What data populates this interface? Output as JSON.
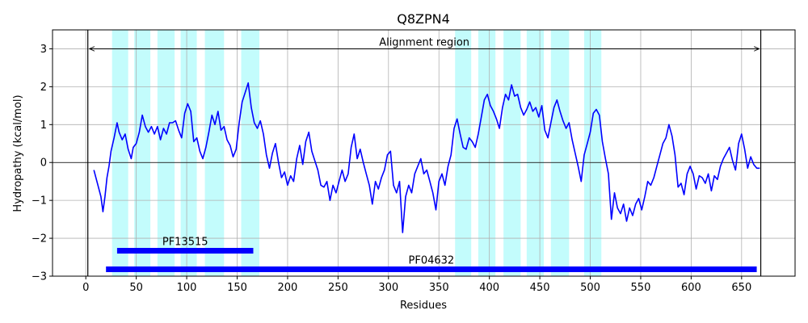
{
  "chart_data": {
    "type": "line",
    "title": "Q8ZPN4",
    "xlabel": "Residues",
    "ylabel": "Hydropathy (kcal/mol)",
    "xlim": [
      -33,
      703
    ],
    "ylim": [
      -3,
      3.5
    ],
    "xticks": [
      0,
      50,
      100,
      150,
      200,
      250,
      300,
      350,
      400,
      450,
      500,
      550,
      600,
      650
    ],
    "yticks": [
      -3,
      -2,
      -1,
      0,
      1,
      2,
      3
    ],
    "grid": true,
    "colors": {
      "line": "#0000ff",
      "band": "#c3fcfc",
      "domain": "#0000ff"
    },
    "highlight_regions": [
      [
        26,
        42
      ],
      [
        48,
        64
      ],
      [
        71,
        88
      ],
      [
        94,
        110
      ],
      [
        118,
        137
      ],
      [
        154,
        172
      ],
      [
        366,
        382
      ],
      [
        389,
        406
      ],
      [
        414,
        431
      ],
      [
        437,
        454
      ],
      [
        461,
        479
      ],
      [
        494,
        511
      ]
    ],
    "alignment_region": {
      "label": "Alignment region",
      "start": 2,
      "end": 669,
      "y": 3.0
    },
    "domains": [
      {
        "label": "PF13515",
        "start": 31,
        "end": 166,
        "y": -2.33
      },
      {
        "label": "PF04632",
        "start": 20,
        "end": 665,
        "y": -2.82
      }
    ],
    "series": [
      {
        "values": [
          [
            8,
            -0.2
          ],
          [
            12,
            -0.6
          ],
          [
            15,
            -0.9
          ],
          [
            17,
            -1.3
          ],
          [
            19,
            -0.9
          ],
          [
            21,
            -0.4
          ],
          [
            23,
            -0.1
          ],
          [
            25,
            0.3
          ],
          [
            28,
            0.65
          ],
          [
            31,
            1.05
          ],
          [
            33,
            0.8
          ],
          [
            36,
            0.6
          ],
          [
            39,
            0.75
          ],
          [
            42,
            0.35
          ],
          [
            45,
            0.1
          ],
          [
            47,
            0.4
          ],
          [
            50,
            0.5
          ],
          [
            53,
            0.8
          ],
          [
            56,
            1.25
          ],
          [
            59,
            0.95
          ],
          [
            62,
            0.8
          ],
          [
            65,
            0.95
          ],
          [
            68,
            0.75
          ],
          [
            71,
            0.95
          ],
          [
            74,
            0.6
          ],
          [
            77,
            0.9
          ],
          [
            80,
            0.75
          ],
          [
            83,
            1.05
          ],
          [
            86,
            1.05
          ],
          [
            89,
            1.1
          ],
          [
            92,
            0.85
          ],
          [
            95,
            0.65
          ],
          [
            98,
            1.3
          ],
          [
            101,
            1.55
          ],
          [
            104,
            1.35
          ],
          [
            107,
            0.55
          ],
          [
            110,
            0.65
          ],
          [
            113,
            0.3
          ],
          [
            116,
            0.1
          ],
          [
            119,
            0.4
          ],
          [
            122,
            0.8
          ],
          [
            125,
            1.25
          ],
          [
            128,
            1.0
          ],
          [
            131,
            1.35
          ],
          [
            134,
            0.85
          ],
          [
            137,
            0.95
          ],
          [
            140,
            0.6
          ],
          [
            143,
            0.45
          ],
          [
            146,
            0.15
          ],
          [
            149,
            0.35
          ],
          [
            152,
            1.05
          ],
          [
            155,
            1.6
          ],
          [
            158,
            1.85
          ],
          [
            161,
            2.1
          ],
          [
            164,
            1.45
          ],
          [
            167,
            1.05
          ],
          [
            170,
            0.9
          ],
          [
            173,
            1.1
          ],
          [
            176,
            0.75
          ],
          [
            179,
            0.2
          ],
          [
            182,
            -0.15
          ],
          [
            185,
            0.25
          ],
          [
            188,
            0.5
          ],
          [
            191,
            0.0
          ],
          [
            194,
            -0.4
          ],
          [
            197,
            -0.25
          ],
          [
            200,
            -0.6
          ],
          [
            203,
            -0.35
          ],
          [
            206,
            -0.5
          ],
          [
            209,
            0.1
          ],
          [
            212,
            0.45
          ],
          [
            215,
            -0.05
          ],
          [
            218,
            0.55
          ],
          [
            221,
            0.8
          ],
          [
            224,
            0.3
          ],
          [
            227,
            0.05
          ],
          [
            230,
            -0.2
          ],
          [
            233,
            -0.6
          ],
          [
            236,
            -0.65
          ],
          [
            239,
            -0.5
          ],
          [
            242,
            -1.0
          ],
          [
            245,
            -0.6
          ],
          [
            248,
            -0.8
          ],
          [
            251,
            -0.5
          ],
          [
            254,
            -0.2
          ],
          [
            257,
            -0.5
          ],
          [
            260,
            -0.3
          ],
          [
            263,
            0.4
          ],
          [
            266,
            0.75
          ],
          [
            269,
            0.1
          ],
          [
            272,
            0.35
          ],
          [
            275,
            0.0
          ],
          [
            278,
            -0.3
          ],
          [
            281,
            -0.6
          ],
          [
            284,
            -1.1
          ],
          [
            287,
            -0.5
          ],
          [
            290,
            -0.7
          ],
          [
            293,
            -0.4
          ],
          [
            296,
            -0.2
          ],
          [
            299,
            0.2
          ],
          [
            302,
            0.3
          ],
          [
            305,
            -0.6
          ],
          [
            308,
            -0.8
          ],
          [
            311,
            -0.5
          ],
          [
            314,
            -1.85
          ],
          [
            317,
            -0.9
          ],
          [
            320,
            -0.6
          ],
          [
            323,
            -0.8
          ],
          [
            326,
            -0.3
          ],
          [
            329,
            -0.1
          ],
          [
            332,
            0.1
          ],
          [
            335,
            -0.3
          ],
          [
            338,
            -0.2
          ],
          [
            341,
            -0.5
          ],
          [
            344,
            -0.8
          ],
          [
            347,
            -1.25
          ],
          [
            350,
            -0.5
          ],
          [
            353,
            -0.3
          ],
          [
            356,
            -0.6
          ],
          [
            359,
            -0.1
          ],
          [
            362,
            0.2
          ],
          [
            365,
            0.9
          ],
          [
            368,
            1.15
          ],
          [
            371,
            0.75
          ],
          [
            374,
            0.4
          ],
          [
            377,
            0.35
          ],
          [
            380,
            0.65
          ],
          [
            383,
            0.55
          ],
          [
            386,
            0.4
          ],
          [
            389,
            0.75
          ],
          [
            392,
            1.2
          ],
          [
            395,
            1.65
          ],
          [
            398,
            1.8
          ],
          [
            401,
            1.5
          ],
          [
            404,
            1.35
          ],
          [
            407,
            1.15
          ],
          [
            410,
            0.9
          ],
          [
            413,
            1.45
          ],
          [
            416,
            1.8
          ],
          [
            419,
            1.65
          ],
          [
            422,
            2.05
          ],
          [
            425,
            1.75
          ],
          [
            428,
            1.8
          ],
          [
            431,
            1.45
          ],
          [
            434,
            1.25
          ],
          [
            437,
            1.4
          ],
          [
            440,
            1.6
          ],
          [
            443,
            1.35
          ],
          [
            446,
            1.45
          ],
          [
            449,
            1.2
          ],
          [
            452,
            1.5
          ],
          [
            455,
            0.85
          ],
          [
            458,
            0.65
          ],
          [
            461,
            1.05
          ],
          [
            464,
            1.45
          ],
          [
            467,
            1.65
          ],
          [
            470,
            1.35
          ],
          [
            473,
            1.1
          ],
          [
            476,
            0.9
          ],
          [
            479,
            1.05
          ],
          [
            482,
            0.6
          ],
          [
            485,
            0.25
          ],
          [
            488,
            -0.1
          ],
          [
            491,
            -0.5
          ],
          [
            494,
            0.2
          ],
          [
            497,
            0.5
          ],
          [
            500,
            0.8
          ],
          [
            503,
            1.3
          ],
          [
            506,
            1.4
          ],
          [
            509,
            1.25
          ],
          [
            512,
            0.55
          ],
          [
            515,
            0.1
          ],
          [
            518,
            -0.3
          ],
          [
            521,
            -1.5
          ],
          [
            524,
            -0.8
          ],
          [
            527,
            -1.2
          ],
          [
            530,
            -1.35
          ],
          [
            533,
            -1.1
          ],
          [
            536,
            -1.55
          ],
          [
            539,
            -1.2
          ],
          [
            542,
            -1.4
          ],
          [
            545,
            -1.1
          ],
          [
            548,
            -0.95
          ],
          [
            551,
            -1.25
          ],
          [
            554,
            -0.9
          ],
          [
            557,
            -0.5
          ],
          [
            560,
            -0.6
          ],
          [
            563,
            -0.4
          ],
          [
            566,
            -0.1
          ],
          [
            569,
            0.2
          ],
          [
            572,
            0.5
          ],
          [
            575,
            0.65
          ],
          [
            578,
            1.0
          ],
          [
            581,
            0.7
          ],
          [
            584,
            0.2
          ],
          [
            587,
            -0.65
          ],
          [
            590,
            -0.55
          ],
          [
            593,
            -0.85
          ],
          [
            596,
            -0.3
          ],
          [
            599,
            -0.1
          ],
          [
            602,
            -0.3
          ],
          [
            605,
            -0.7
          ],
          [
            608,
            -0.35
          ],
          [
            611,
            -0.4
          ],
          [
            614,
            -0.55
          ],
          [
            617,
            -0.3
          ],
          [
            620,
            -0.75
          ],
          [
            623,
            -0.35
          ],
          [
            626,
            -0.45
          ],
          [
            629,
            -0.1
          ],
          [
            632,
            0.1
          ],
          [
            635,
            0.25
          ],
          [
            638,
            0.4
          ],
          [
            641,
            0.05
          ],
          [
            644,
            -0.2
          ],
          [
            647,
            0.5
          ],
          [
            650,
            0.75
          ],
          [
            653,
            0.35
          ],
          [
            656,
            -0.15
          ],
          [
            659,
            0.15
          ],
          [
            662,
            -0.05
          ],
          [
            665,
            -0.15
          ],
          [
            668,
            -0.15
          ]
        ]
      }
    ]
  }
}
